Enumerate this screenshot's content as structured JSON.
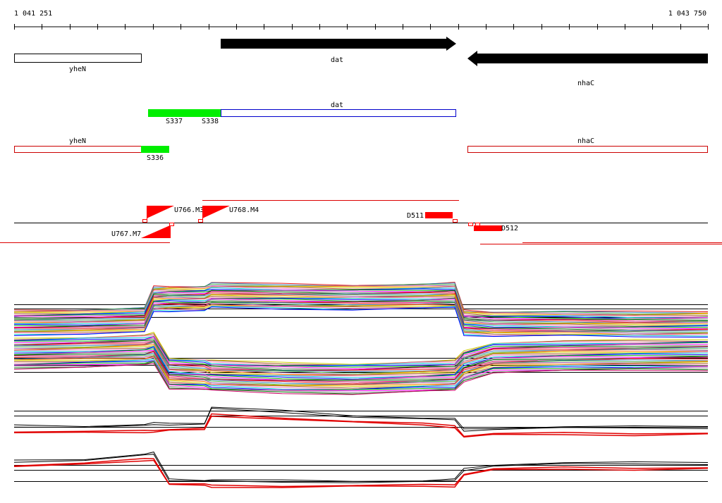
{
  "ruler": {
    "start": "1 041 251",
    "end": "1 043 750"
  },
  "genes": [
    {
      "label": "yheN"
    },
    {
      "label": "dat"
    },
    {
      "label": "nhaC"
    }
  ],
  "transcripts": {
    "dat": "dat",
    "segments": [
      "S337",
      "S338"
    ]
  },
  "annotations": {
    "left": "yheN",
    "segment": "S336",
    "right": "nhaC"
  },
  "features": [
    "U766.M3",
    "U768.M4",
    "U767.M7",
    "D511",
    "D512"
  ]
}
